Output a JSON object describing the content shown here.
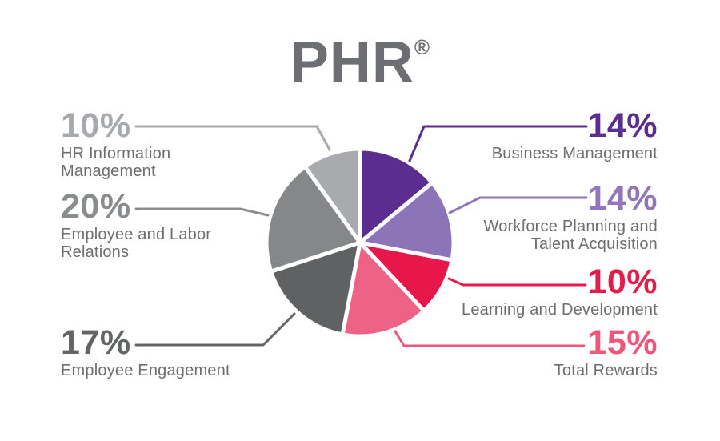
{
  "title": {
    "text": "PHR",
    "registered": "®",
    "color": "#6D6E71"
  },
  "colors": {
    "background": "#FFFFFF",
    "label_text": "#6D6E71",
    "slice_gap": "#FFFFFF"
  },
  "chart_data": {
    "type": "pie",
    "title": "PHR®",
    "units": "percent",
    "total": 100,
    "start_angle_deg": 0,
    "direction": "clockwise",
    "legend_position": "callouts",
    "segments": [
      {
        "label": "Business Management",
        "pct": "14%",
        "value": 14,
        "color": "#5C2D91",
        "accent": "#5C2D91",
        "side": "right",
        "label_lines": [
          "Business Management"
        ]
      },
      {
        "label": "Workforce Planning and Talent Acquisition",
        "pct": "14%",
        "value": 14,
        "color": "#8C74B9",
        "accent": "#9176BC",
        "side": "right",
        "label_lines": [
          "Workforce Planning and",
          "Talent Acquisition"
        ]
      },
      {
        "label": "Learning and Development",
        "pct": "10%",
        "value": 10,
        "color": "#E8174B",
        "accent": "#E31C49",
        "side": "right",
        "label_lines": [
          "Learning and Development"
        ]
      },
      {
        "label": "Total Rewards",
        "pct": "15%",
        "value": 15,
        "color": "#EE6286",
        "accent": "#EE577C",
        "side": "right",
        "label_lines": [
          "Total Rewards"
        ]
      },
      {
        "label": "Employee Engagement",
        "pct": "17%",
        "value": 17,
        "color": "#606163",
        "accent": "#636466",
        "side": "left",
        "label_lines": [
          "Employee Engagement"
        ]
      },
      {
        "label": "Employee and Labor Relations",
        "pct": "20%",
        "value": 20,
        "color": "#858789",
        "accent": "#8A8C8E",
        "side": "left",
        "label_lines": [
          "Employee and Labor",
          "Relations"
        ]
      },
      {
        "label": "HR Information Management",
        "pct": "10%",
        "value": 10,
        "color": "#A8AAAD",
        "accent": "#A7A9AC",
        "side": "left",
        "label_lines": [
          "HR Information",
          "Management"
        ]
      }
    ]
  }
}
